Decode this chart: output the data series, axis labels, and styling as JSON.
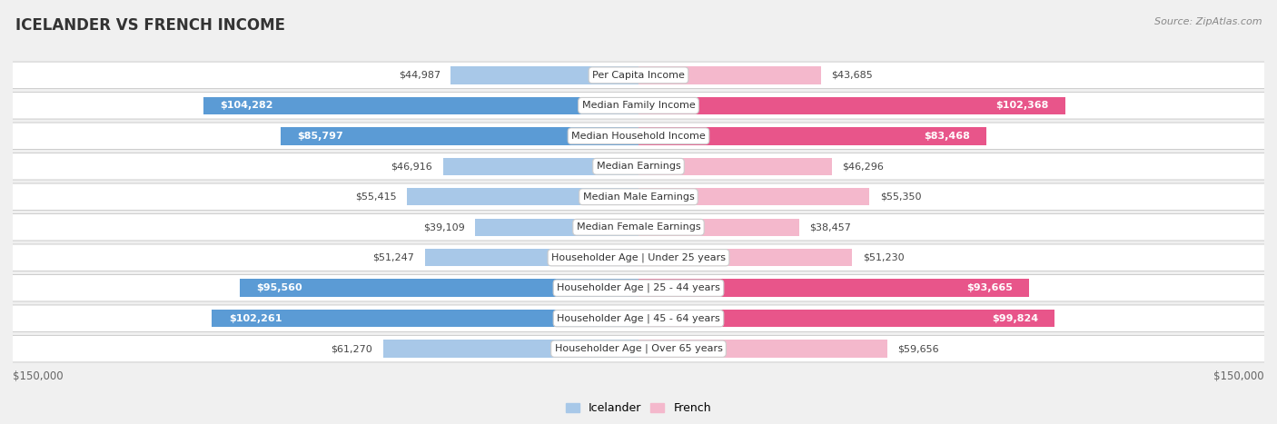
{
  "title": "ICELANDER VS FRENCH INCOME",
  "source": "Source: ZipAtlas.com",
  "categories": [
    "Per Capita Income",
    "Median Family Income",
    "Median Household Income",
    "Median Earnings",
    "Median Male Earnings",
    "Median Female Earnings",
    "Householder Age | Under 25 years",
    "Householder Age | 25 - 44 years",
    "Householder Age | 45 - 64 years",
    "Householder Age | Over 65 years"
  ],
  "icelander": [
    44987,
    104282,
    85797,
    46916,
    55415,
    39109,
    51247,
    95560,
    102261,
    61270
  ],
  "french": [
    43685,
    102368,
    83468,
    46296,
    55350,
    38457,
    51230,
    93665,
    99824,
    59656
  ],
  "icelander_color_low": "#a8c8e8",
  "icelander_color_high": "#5b9bd5",
  "french_color_low": "#f4b8cc",
  "french_color_high": "#e8558a",
  "label_color_dark": "#444444",
  "label_color_white": "#ffffff",
  "max_value": 150000,
  "bg_color": "#f0f0f0",
  "row_bg": "#ffffff",
  "legend_icelander": "Icelander",
  "legend_french": "French",
  "high_threshold": 75000
}
